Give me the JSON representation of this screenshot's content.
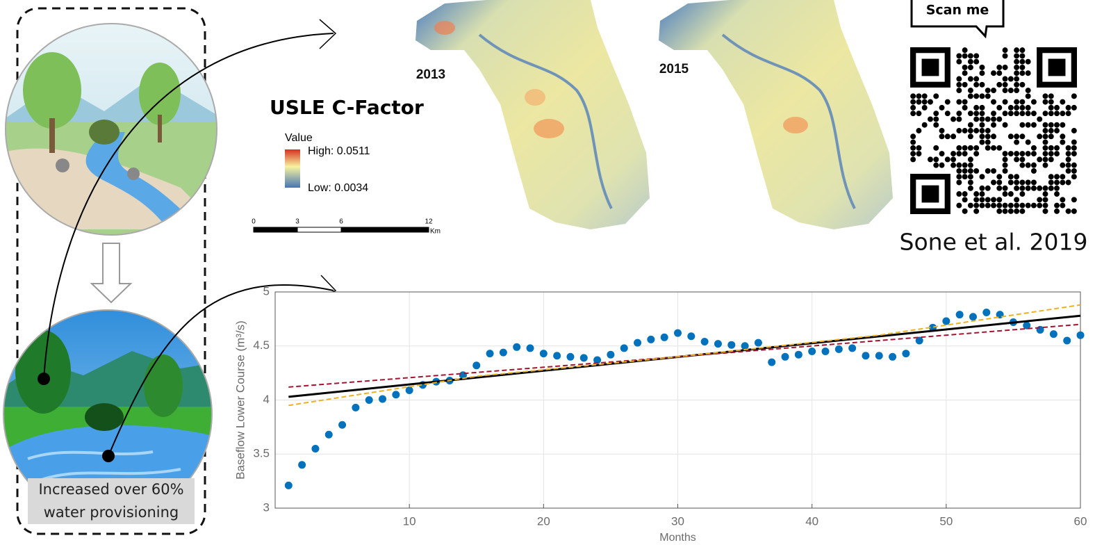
{
  "illustration": {
    "caption": [
      "Increased over 60%",
      "water provisioning"
    ]
  },
  "maps": {
    "title": "USLE C-Factor",
    "years": [
      "2013",
      "2015"
    ],
    "legend": {
      "title": "Value",
      "high": "High: 0.0511",
      "low": "Low: 0.0034"
    },
    "scale_bar": {
      "ticks": [
        0,
        3,
        6,
        12
      ],
      "unit": "Km"
    }
  },
  "qr": {
    "callout": "Scan me",
    "citation": "Sone et al. 2019"
  },
  "chart_data": {
    "type": "scatter",
    "xlabel": "Months",
    "ylabel": "Baseflow Lower Course (m³/s)",
    "x": [
      1,
      2,
      3,
      4,
      5,
      6,
      7,
      8,
      9,
      10,
      11,
      12,
      13,
      14,
      15,
      16,
      17,
      18,
      19,
      20,
      21,
      22,
      23,
      24,
      25,
      26,
      27,
      28,
      29,
      30,
      31,
      32,
      33,
      34,
      35,
      36,
      37,
      38,
      39,
      40,
      41,
      42,
      43,
      44,
      45,
      46,
      47,
      48,
      49,
      50,
      51,
      52,
      53,
      54,
      55,
      56,
      57,
      58,
      59,
      60
    ],
    "series": [
      {
        "type": "scatter",
        "color": "#0072bd",
        "values": [
          3.21,
          3.4,
          3.55,
          3.68,
          3.77,
          3.93,
          4.0,
          4.01,
          4.05,
          4.09,
          4.14,
          4.17,
          4.18,
          4.23,
          4.32,
          4.43,
          4.44,
          4.49,
          4.48,
          4.43,
          4.41,
          4.4,
          4.39,
          4.37,
          4.42,
          4.48,
          4.53,
          4.56,
          4.58,
          4.62,
          4.59,
          4.54,
          4.52,
          4.51,
          4.5,
          4.53,
          4.35,
          4.4,
          4.42,
          4.45,
          4.45,
          4.47,
          4.48,
          4.41,
          4.41,
          4.4,
          4.43,
          4.55,
          4.67,
          4.73,
          4.79,
          4.77,
          4.81,
          4.79,
          4.72,
          4.69,
          4.65,
          4.61,
          4.55,
          4.6
        ]
      },
      {
        "type": "line",
        "color": "#000000",
        "dash": false,
        "x": [
          1,
          60
        ],
        "values": [
          4.03,
          4.78
        ]
      },
      {
        "type": "line",
        "color": "#a2142f",
        "dash": true,
        "x": [
          1,
          30,
          60
        ],
        "values": [
          4.12,
          4.4,
          4.7
        ]
      },
      {
        "type": "line",
        "color": "#edb120",
        "dash": true,
        "x": [
          1,
          15,
          30,
          45,
          60
        ],
        "values": [
          3.95,
          4.22,
          4.4,
          4.6,
          4.88
        ]
      }
    ],
    "xlim": [
      0,
      60
    ],
    "ylim": [
      3,
      5
    ],
    "xticks": [
      10,
      20,
      30,
      40,
      50,
      60
    ],
    "yticks": [
      3,
      3.5,
      4,
      4.5,
      5
    ],
    "grid": true
  }
}
